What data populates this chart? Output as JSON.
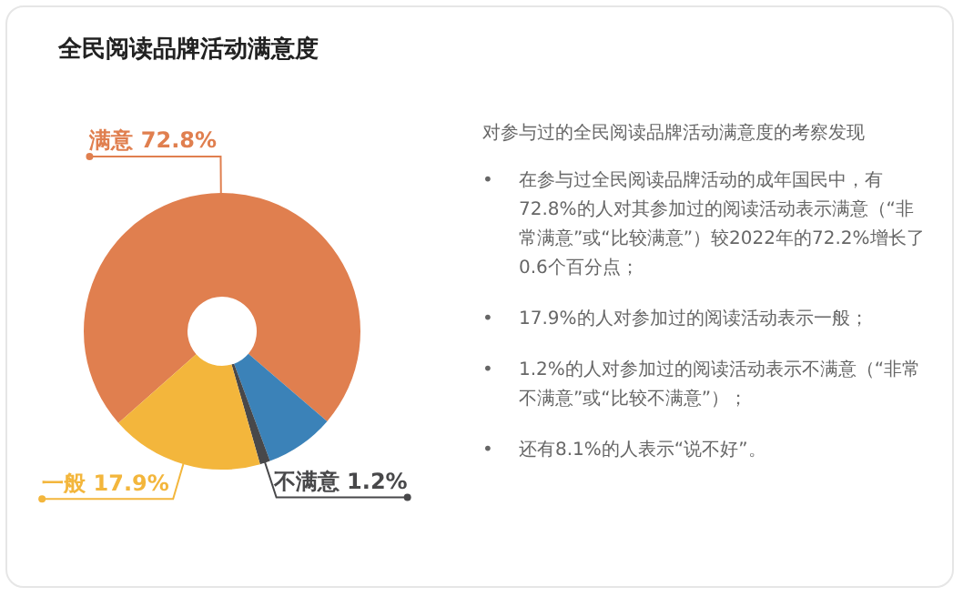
{
  "chart_data": {
    "type": "donut",
    "title": "全民阅读品牌活动满意度",
    "categories": [
      "满意",
      null,
      "不满意",
      "一般"
    ],
    "values": [
      72.8,
      8.1,
      1.2,
      17.9
    ],
    "value_labels": [
      "72.8%",
      null,
      "1.2%",
      "17.9%"
    ],
    "colors": [
      "#e07f4f",
      "#3b82b8",
      "#48484a",
      "#f3b63c"
    ],
    "legend": false,
    "annotations": [
      "对参与过的全民阅读品牌活动满意度的考察发现",
      "• 在参与过全民阅读品牌活动的成年国民中，有72.8%的人对其参加过的阅读活动表示满意（“非常满意”或“比较满意”）较2022年的72.2%增长了0.6个百分点；",
      "• 17.9%的人对参加过的阅读活动表示一般；",
      "• 1.2%的人对参加过的阅读活动表示不满意（“非常不满意”或“比较不满意”）；",
      "• 还有8.1%的人表示“说不好”。"
    ]
  }
}
